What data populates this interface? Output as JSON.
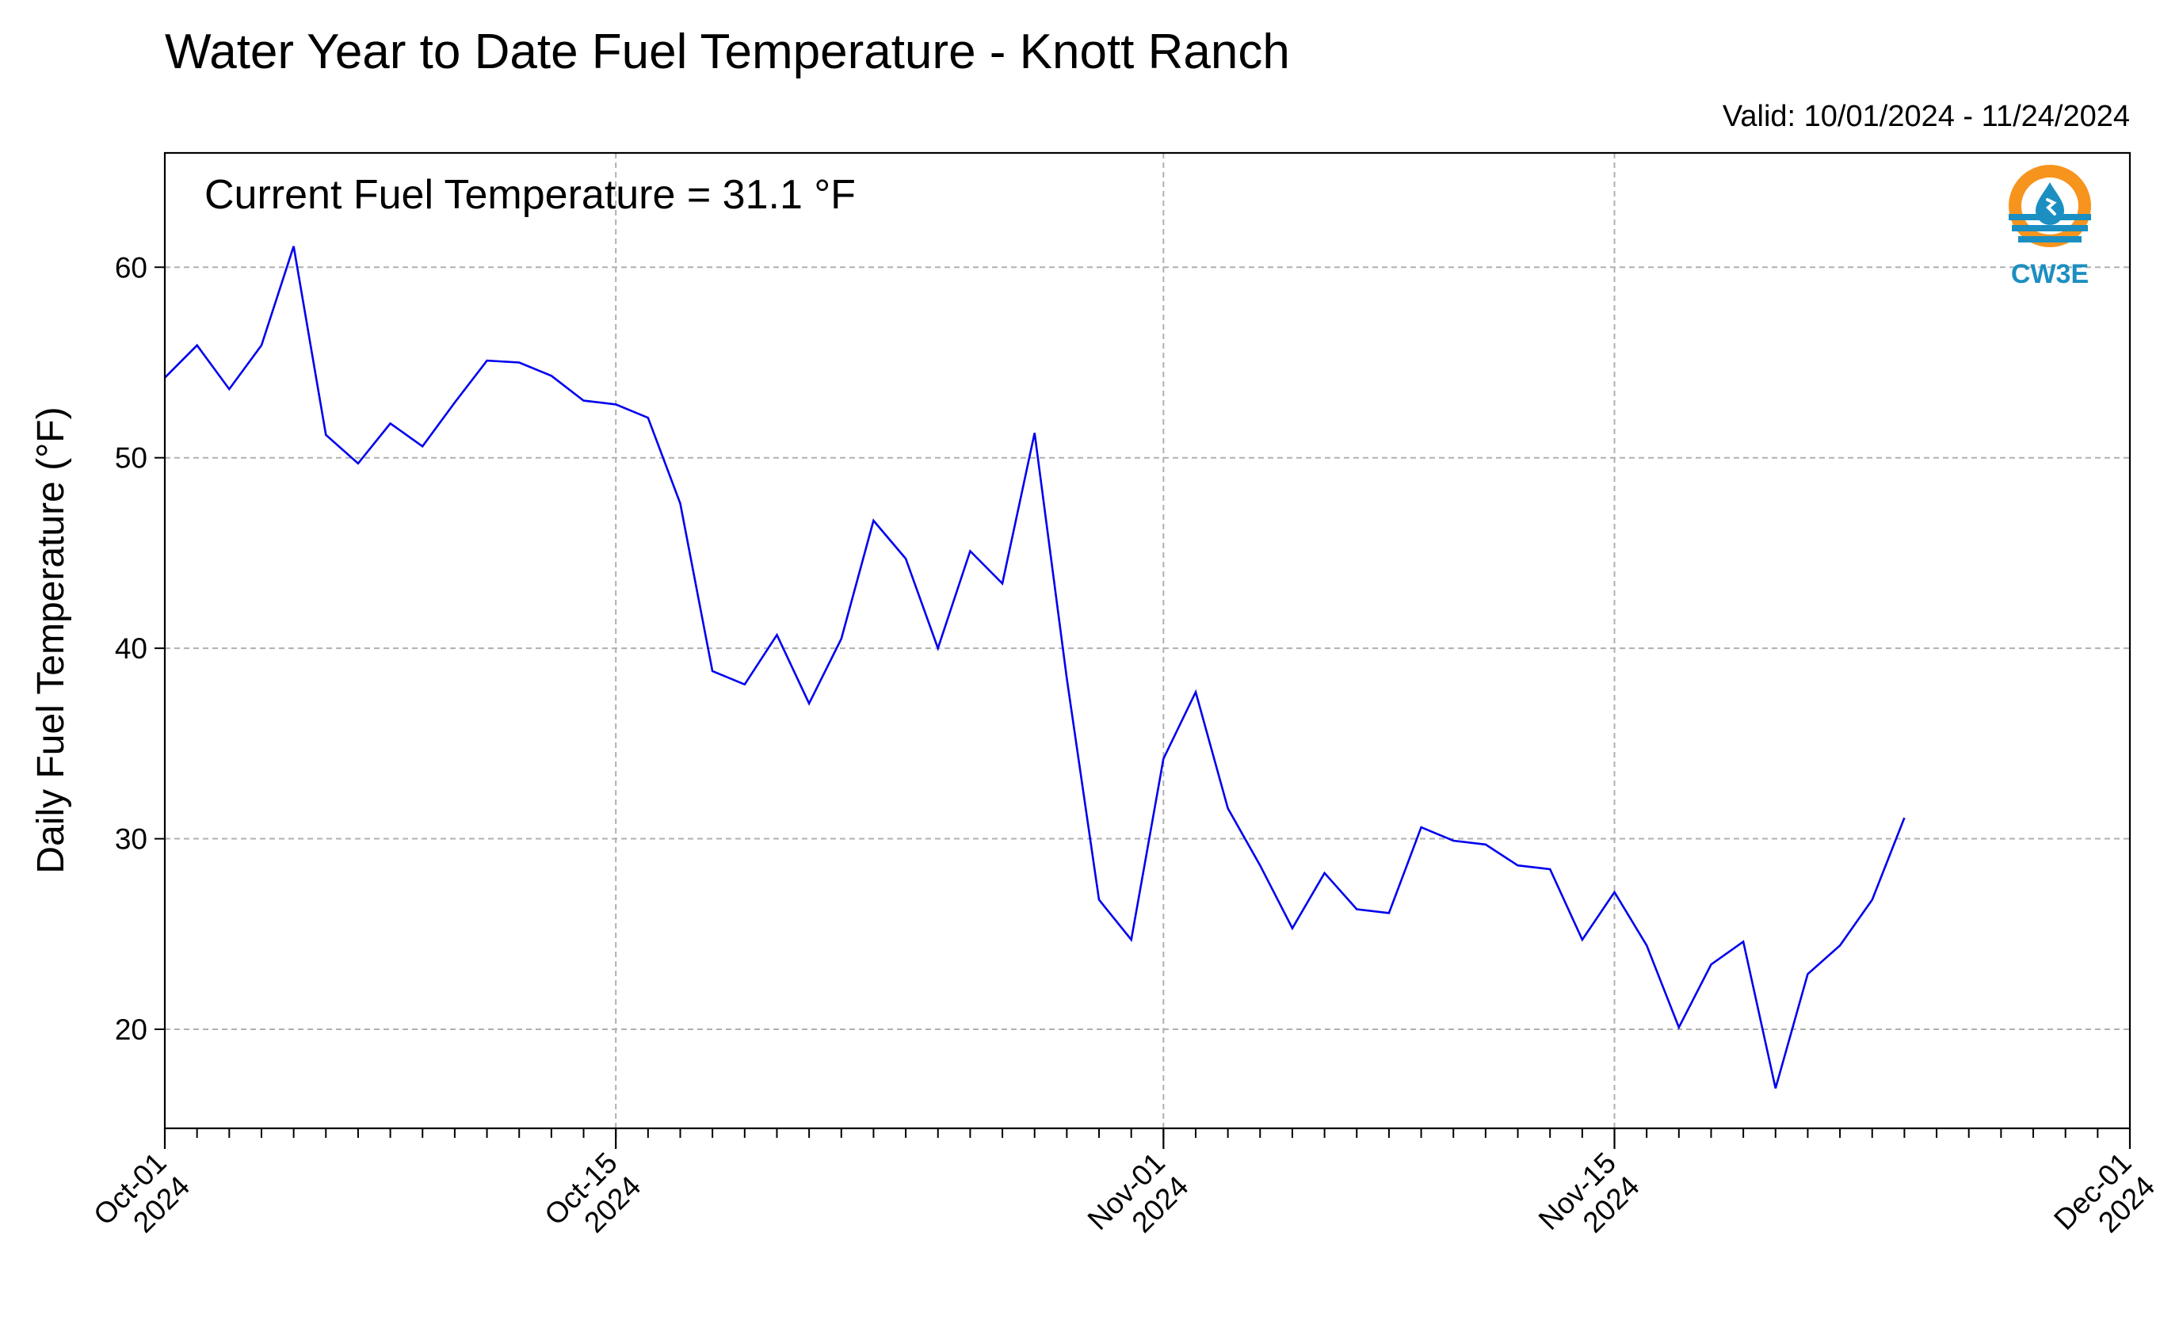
{
  "chart_data": {
    "type": "line",
    "title": "Water Year to Date Fuel Temperature - Knott Ranch",
    "valid_text": "Valid: 10/01/2024 - 11/24/2024",
    "annotation": "Current Fuel Temperature = 31.1 °F",
    "ylabel": "Daily Fuel Temperature (°F)",
    "xlabel": "",
    "xlim": [
      "2024-10-01",
      "2024-12-01"
    ],
    "ylim": [
      14.8,
      66
    ],
    "yticks": [
      20,
      30,
      40,
      50,
      60
    ],
    "xticks_major": [
      {
        "date": "2024-10-01",
        "label": [
          "Oct-01",
          "2024"
        ]
      },
      {
        "date": "2024-10-15",
        "label": [
          "Oct-15",
          "2024"
        ]
      },
      {
        "date": "2024-11-01",
        "label": [
          "Nov-01",
          "2024"
        ]
      },
      {
        "date": "2024-11-15",
        "label": [
          "Nov-15",
          "2024"
        ]
      },
      {
        "date": "2024-12-01",
        "label": [
          "Dec-01",
          "2024"
        ]
      }
    ],
    "grid": true,
    "line_color": "#0000ee",
    "series": [
      {
        "start_date": "2024-10-01",
        "dates": [
          "2024-10-01",
          "2024-10-02",
          "2024-10-03",
          "2024-10-04",
          "2024-10-05",
          "2024-10-06",
          "2024-10-07",
          "2024-10-08",
          "2024-10-09",
          "2024-10-10",
          "2024-10-11",
          "2024-10-12",
          "2024-10-13",
          "2024-10-14",
          "2024-10-15",
          "2024-10-16",
          "2024-10-17",
          "2024-10-18",
          "2024-10-19",
          "2024-10-20",
          "2024-10-21",
          "2024-10-22",
          "2024-10-23",
          "2024-10-24",
          "2024-10-25",
          "2024-10-26",
          "2024-10-27",
          "2024-10-28",
          "2024-10-29",
          "2024-10-30",
          "2024-10-31",
          "2024-11-01",
          "2024-11-02",
          "2024-11-03",
          "2024-11-04",
          "2024-11-05",
          "2024-11-06",
          "2024-11-07",
          "2024-11-08",
          "2024-11-09",
          "2024-11-10",
          "2024-11-11",
          "2024-11-12",
          "2024-11-13",
          "2024-11-14",
          "2024-11-15",
          "2024-11-16",
          "2024-11-17",
          "2024-11-18",
          "2024-11-19",
          "2024-11-20",
          "2024-11-21",
          "2024-11-22",
          "2024-11-23",
          "2024-11-24"
        ],
        "values": [
          54.2,
          55.9,
          53.6,
          55.9,
          61.1,
          51.2,
          49.7,
          51.8,
          50.6,
          52.9,
          55.1,
          55.0,
          54.3,
          53.0,
          52.8,
          52.1,
          47.6,
          38.8,
          38.1,
          40.7,
          37.1,
          40.5,
          46.7,
          44.7,
          40.0,
          45.1,
          43.4,
          51.3,
          38.4,
          26.8,
          24.7,
          34.2,
          37.7,
          31.6,
          28.6,
          25.3,
          28.2,
          26.3,
          26.1,
          30.6,
          29.9,
          29.7,
          28.6,
          28.4,
          24.7,
          27.2,
          24.4,
          20.1,
          23.4,
          24.6,
          16.9,
          22.9,
          24.4,
          26.8,
          31.1
        ]
      }
    ]
  },
  "logo": {
    "text": "CW3E",
    "colors": {
      "orange": "#f7941d",
      "blue": "#1b8fc1"
    }
  }
}
